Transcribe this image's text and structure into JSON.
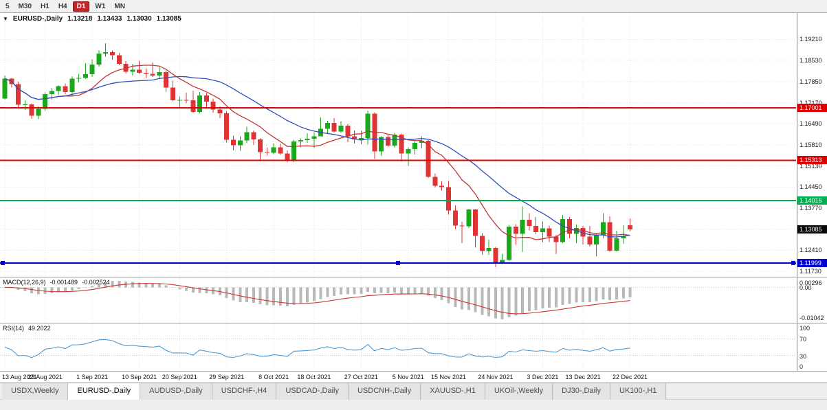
{
  "toolbar": {
    "timeframes": [
      {
        "label": "5",
        "active": false
      },
      {
        "label": "M30",
        "active": false
      },
      {
        "label": "H1",
        "active": false
      },
      {
        "label": "H4",
        "active": false
      },
      {
        "label": "D1",
        "active": true
      },
      {
        "label": "W1",
        "active": false
      },
      {
        "label": "MN",
        "active": false
      }
    ]
  },
  "chart": {
    "header": {
      "collapse_icon": "▼",
      "title": "EURUSD-,Daily",
      "open": "1.13218",
      "high": "1.13433",
      "low": "1.13030",
      "close": "1.13085"
    },
    "colors": {
      "up": "#19a819",
      "down": "#e03333",
      "grid": "#e4e4e4",
      "axis_text": "#1a1a1a"
    },
    "price_axis": {
      "labels": [
        "1.19210",
        "1.18530",
        "1.17850",
        "1.17170",
        "1.16490",
        "1.15810",
        "1.15130",
        "1.14450",
        "1.13770",
        "1.12410",
        "1.11730"
      ],
      "grid": [
        1.1921,
        1.1853,
        1.1785,
        1.1717,
        1.1649,
        1.1581,
        1.1513,
        1.1445,
        1.1377,
        1.1309,
        1.1241,
        1.1173
      ]
    },
    "levels": [
      {
        "name": "resistance-1",
        "label": "1.17001",
        "value": 1.17001,
        "color": "#dd0000",
        "line": true,
        "handles": false
      },
      {
        "name": "resistance-2",
        "label": "1.15313",
        "value": 1.15313,
        "color": "#dd0000",
        "line": true,
        "handles": false
      },
      {
        "name": "support-green",
        "label": "1.14016",
        "value": 1.14016,
        "color": "#00b050",
        "line": true,
        "handles": false
      },
      {
        "name": "support-blue",
        "label": "1.11999",
        "value": 1.11999,
        "color": "#0000cd",
        "line": true,
        "handles": true
      },
      {
        "name": "current-price",
        "label": "1.13085",
        "value": 1.13085,
        "color": "#0a0a0a",
        "line": false,
        "handles": false
      }
    ]
  },
  "chart_data": {
    "type": "candlestick",
    "title": "EURUSD-,Daily",
    "x_ticks": [
      {
        "label": "13 Aug 2021",
        "bar": 0
      },
      {
        "label": "23 Aug 2021",
        "bar": 6
      },
      {
        "label": "1 Sep 2021",
        "bar": 13
      },
      {
        "label": "10 Sep 2021",
        "bar": 20
      },
      {
        "label": "20 Sep 2021",
        "bar": 26
      },
      {
        "label": "29 Sep 2021",
        "bar": 33
      },
      {
        "label": "8 Oct 2021",
        "bar": 40
      },
      {
        "label": "18 Oct 2021",
        "bar": 46
      },
      {
        "label": "27 Oct 2021",
        "bar": 53
      },
      {
        "label": "5 Nov 2021",
        "bar": 60
      },
      {
        "label": "15 Nov 2021",
        "bar": 66
      },
      {
        "label": "24 Nov 2021",
        "bar": 73
      },
      {
        "label": "3 Dec 2021",
        "bar": 80
      },
      {
        "label": "13 Dec 2021",
        "bar": 86
      },
      {
        "label": "22 Dec 2021",
        "bar": 93
      }
    ],
    "candles": [
      [
        1.173,
        1.1805,
        1.1727,
        1.1795
      ],
      [
        1.1795,
        1.1797,
        1.1766,
        1.1777
      ],
      [
        1.1777,
        1.1785,
        1.1702,
        1.171
      ],
      [
        1.171,
        1.1725,
        1.1694,
        1.1712
      ],
      [
        1.1712,
        1.1715,
        1.1665,
        1.1675
      ],
      [
        1.1675,
        1.1705,
        1.1664,
        1.1697
      ],
      [
        1.1697,
        1.175,
        1.169,
        1.1745
      ],
      [
        1.1745,
        1.1765,
        1.1727,
        1.1755
      ],
      [
        1.1755,
        1.1774,
        1.1743,
        1.177
      ],
      [
        1.177,
        1.1779,
        1.1745,
        1.1751
      ],
      [
        1.1751,
        1.1802,
        1.174,
        1.1795
      ],
      [
        1.1795,
        1.181,
        1.1782,
        1.1797
      ],
      [
        1.1797,
        1.1845,
        1.1794,
        1.1809
      ],
      [
        1.1809,
        1.1857,
        1.18,
        1.184
      ],
      [
        1.184,
        1.1885,
        1.1834,
        1.1875
      ],
      [
        1.1875,
        1.1909,
        1.1866,
        1.188
      ],
      [
        1.188,
        1.1885,
        1.1856,
        1.187
      ],
      [
        1.187,
        1.1878,
        1.1838,
        1.1842
      ],
      [
        1.1842,
        1.1851,
        1.1811,
        1.1817
      ],
      [
        1.1817,
        1.1842,
        1.1805,
        1.1824
      ],
      [
        1.1824,
        1.1852,
        1.181,
        1.1814
      ],
      [
        1.1814,
        1.1828,
        1.1797,
        1.181
      ],
      [
        1.181,
        1.1847,
        1.18,
        1.1805
      ],
      [
        1.1805,
        1.1831,
        1.1795,
        1.1816
      ],
      [
        1.1816,
        1.1821,
        1.1751,
        1.1766
      ],
      [
        1.1766,
        1.1788,
        1.1722,
        1.1725
      ],
      [
        1.1725,
        1.1737,
        1.17,
        1.1726
      ],
      [
        1.1726,
        1.1749,
        1.1715,
        1.1725
      ],
      [
        1.1725,
        1.1756,
        1.1684,
        1.1687
      ],
      [
        1.1687,
        1.1751,
        1.1683,
        1.174
      ],
      [
        1.174,
        1.1748,
        1.1701,
        1.172
      ],
      [
        1.172,
        1.173,
        1.1685,
        1.1695
      ],
      [
        1.1695,
        1.1705,
        1.1667,
        1.1683
      ],
      [
        1.1683,
        1.169,
        1.1589,
        1.1597
      ],
      [
        1.1597,
        1.1611,
        1.1563,
        1.158
      ],
      [
        1.158,
        1.1608,
        1.1562,
        1.1595
      ],
      [
        1.1595,
        1.164,
        1.1586,
        1.1622
      ],
      [
        1.1622,
        1.1627,
        1.1581,
        1.1599
      ],
      [
        1.1599,
        1.1602,
        1.1529,
        1.1558
      ],
      [
        1.1558,
        1.1572,
        1.1546,
        1.1555
      ],
      [
        1.1555,
        1.1586,
        1.1551,
        1.1573
      ],
      [
        1.1573,
        1.1585,
        1.1549,
        1.1553
      ],
      [
        1.1553,
        1.1563,
        1.1524,
        1.1529
      ],
      [
        1.1529,
        1.1597,
        1.1525,
        1.1592
      ],
      [
        1.1592,
        1.1602,
        1.1573,
        1.1596
      ],
      [
        1.1596,
        1.1619,
        1.1588,
        1.1601
      ],
      [
        1.1601,
        1.1622,
        1.1571,
        1.1609
      ],
      [
        1.1609,
        1.167,
        1.1609,
        1.1633
      ],
      [
        1.1633,
        1.1658,
        1.1616,
        1.1652
      ],
      [
        1.1652,
        1.1667,
        1.1621,
        1.1624
      ],
      [
        1.1624,
        1.1657,
        1.162,
        1.1643
      ],
      [
        1.1643,
        1.1648,
        1.159,
        1.1608
      ],
      [
        1.1608,
        1.1627,
        1.1585,
        1.1598
      ],
      [
        1.1598,
        1.1626,
        1.1583,
        1.1603
      ],
      [
        1.1603,
        1.1692,
        1.1582,
        1.1682
      ],
      [
        1.1682,
        1.1686,
        1.1535,
        1.156
      ],
      [
        1.156,
        1.1609,
        1.1545,
        1.1606
      ],
      [
        1.1606,
        1.1612,
        1.1575,
        1.1579
      ],
      [
        1.1579,
        1.162,
        1.1572,
        1.1614
      ],
      [
        1.1614,
        1.1617,
        1.1528,
        1.1553
      ],
      [
        1.1553,
        1.1573,
        1.1513,
        1.1567
      ],
      [
        1.1567,
        1.1593,
        1.155,
        1.1588
      ],
      [
        1.1588,
        1.1609,
        1.157,
        1.1594
      ],
      [
        1.1594,
        1.1596,
        1.1475,
        1.1478
      ],
      [
        1.1478,
        1.1489,
        1.1443,
        1.1449
      ],
      [
        1.1449,
        1.1463,
        1.1433,
        1.1445
      ],
      [
        1.1445,
        1.1464,
        1.1356,
        1.1369
      ],
      [
        1.1369,
        1.1386,
        1.1309,
        1.132
      ],
      [
        1.132,
        1.1333,
        1.1264,
        1.1318
      ],
      [
        1.1318,
        1.1374,
        1.1313,
        1.1372
      ],
      [
        1.1372,
        1.1374,
        1.125,
        1.1287
      ],
      [
        1.1287,
        1.1296,
        1.1226,
        1.1238
      ],
      [
        1.1238,
        1.1275,
        1.1226,
        1.1248
      ],
      [
        1.1248,
        1.1252,
        1.1186,
        1.12
      ],
      [
        1.12,
        1.123,
        1.1196,
        1.121
      ],
      [
        1.121,
        1.1323,
        1.1206,
        1.1317
      ],
      [
        1.1317,
        1.1325,
        1.1258,
        1.1294
      ],
      [
        1.1294,
        1.1383,
        1.1235,
        1.1339
      ],
      [
        1.1339,
        1.136,
        1.1305,
        1.1319
      ],
      [
        1.1319,
        1.1348,
        1.1293,
        1.1299
      ],
      [
        1.1299,
        1.1334,
        1.1266,
        1.1312
      ],
      [
        1.1312,
        1.132,
        1.1267,
        1.1285
      ],
      [
        1.1285,
        1.1291,
        1.1228,
        1.1267
      ],
      [
        1.1267,
        1.1355,
        1.1264,
        1.1342
      ],
      [
        1.1342,
        1.1348,
        1.128,
        1.1294
      ],
      [
        1.1294,
        1.1324,
        1.1264,
        1.1313
      ],
      [
        1.1313,
        1.1319,
        1.126,
        1.1285
      ],
      [
        1.1285,
        1.1319,
        1.1253,
        1.126
      ],
      [
        1.126,
        1.1296,
        1.1222,
        1.1289
      ],
      [
        1.1289,
        1.136,
        1.128,
        1.1332
      ],
      [
        1.1332,
        1.135,
        1.1236,
        1.124
      ],
      [
        1.124,
        1.1304,
        1.1237,
        1.128
      ],
      [
        1.128,
        1.1322,
        1.1262,
        1.1287
      ],
      [
        1.13218,
        1.13433,
        1.1303,
        1.13085
      ]
    ],
    "overlays": [
      {
        "name": "ma-fast",
        "type": "sma",
        "period": 10,
        "color": "#c03434"
      },
      {
        "name": "ma-slow",
        "type": "sma",
        "period": 21,
        "color": "#2f4fc0"
      }
    ],
    "indicators": [
      {
        "name": "macd",
        "label": "MACD(12,26,9)",
        "values": [
          "-0.001489",
          "-0.002524"
        ],
        "histogram_color": "#b8b8b8",
        "signal_color": "#cc3333",
        "axis": {
          "max": "0.00296",
          "zero": "0.00",
          "min": "-0.01042"
        }
      },
      {
        "name": "rsi",
        "label": "RSI(14)",
        "value": "49.2022",
        "line_color": "#4d9ad6",
        "axis": [
          {
            "label": "100",
            "value": 100
          },
          {
            "label": "70",
            "value": 70
          },
          {
            "label": "30",
            "value": 30
          },
          {
            "label": "0",
            "value": 0
          }
        ],
        "levels": [
          70,
          30
        ]
      }
    ]
  },
  "tabs": [
    {
      "label": "USDX,Weekly",
      "active": false
    },
    {
      "label": "EURUSD-,Daily",
      "active": true
    },
    {
      "label": "AUDUSD-,Daily",
      "active": false
    },
    {
      "label": "USDCHF-,H4",
      "active": false
    },
    {
      "label": "USDCAD-,Daily",
      "active": false
    },
    {
      "label": "USDCNH-,Daily",
      "active": false
    },
    {
      "label": "XAUUSD-,H1",
      "active": false
    },
    {
      "label": "UKOil-,Weekly",
      "active": false
    },
    {
      "label": "DJ30-,Daily",
      "active": false
    },
    {
      "label": "UK100-,H1",
      "active": false
    }
  ]
}
